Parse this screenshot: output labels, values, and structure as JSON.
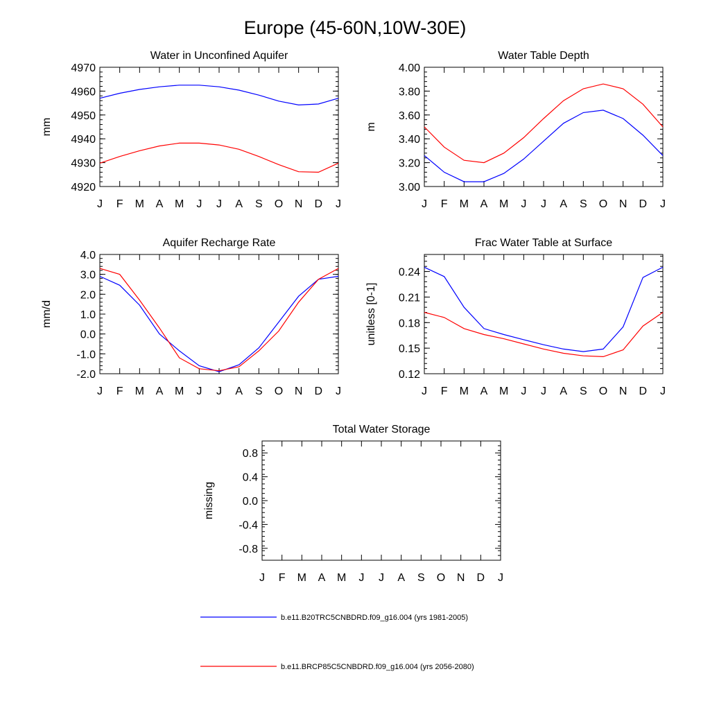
{
  "title": "Europe (45-60N,10W-30E)",
  "months": [
    "J",
    "F",
    "M",
    "A",
    "M",
    "J",
    "J",
    "A",
    "S",
    "O",
    "N",
    "D",
    "J"
  ],
  "colors": {
    "historical": "#0000ff",
    "future": "#ff0000",
    "axis": "#000000"
  },
  "legend": [
    {
      "label": "b.e11.B20TRC5CNBDRD.f09_g16.004 (yrs 1981-2005)",
      "color": "#0000ff"
    },
    {
      "label": "b.e11.BRCP85C5CNBDRD.f09_g16.004 (yrs 2056-2080)",
      "color": "#ff0000"
    }
  ],
  "chart_data": [
    {
      "type": "line",
      "title": "Water in Unconfined Aquifer",
      "ylabel": "mm",
      "ylim": [
        4920,
        4970
      ],
      "yticks": [
        "4920",
        "4930",
        "4940",
        "4950",
        "4960",
        "4970"
      ],
      "series": [
        {
          "name": "b.e11.B20TRC5CNBDRD.f09_g16.004 (yrs 1981-2005)",
          "values": [
            4957.0,
            4959.1,
            4960.7,
            4961.8,
            4962.5,
            4962.5,
            4961.8,
            4960.4,
            4958.3,
            4955.8,
            4954.2,
            4954.6,
            4957.0
          ]
        },
        {
          "name": "b.e11.BRCP85C5CNBDRD.f09_g16.004 (yrs 2056-2080)",
          "values": [
            4929.8,
            4932.6,
            4935.0,
            4937.0,
            4938.2,
            4938.2,
            4937.4,
            4935.6,
            4932.6,
            4929.2,
            4926.2,
            4926.0,
            4929.8
          ]
        }
      ]
    },
    {
      "type": "line",
      "title": "Water Table Depth",
      "ylabel": "m",
      "ylim": [
        3.0,
        4.0
      ],
      "yticks": [
        "3.00",
        "3.20",
        "3.40",
        "3.60",
        "3.80",
        "4.00"
      ],
      "series": [
        {
          "name": "b.e11.B20TRC5CNBDRD.f09_g16.004 (yrs 1981-2005)",
          "values": [
            3.26,
            3.12,
            3.04,
            3.04,
            3.11,
            3.23,
            3.38,
            3.53,
            3.62,
            3.64,
            3.57,
            3.43,
            3.26
          ]
        },
        {
          "name": "b.e11.BRCP85C5CNBDRD.f09_g16.004 (yrs 2056-2080)",
          "values": [
            3.5,
            3.33,
            3.22,
            3.2,
            3.28,
            3.41,
            3.57,
            3.72,
            3.82,
            3.86,
            3.82,
            3.69,
            3.5
          ]
        }
      ]
    },
    {
      "type": "line",
      "title": "Aquifer Recharge Rate",
      "ylabel": "mm/d",
      "ylim": [
        -2.0,
        4.0
      ],
      "yticks": [
        "-2.0",
        "-1.0",
        "0.0",
        "1.0",
        "2.0",
        "3.0",
        "4.0"
      ],
      "series": [
        {
          "name": "b.e11.B20TRC5CNBDRD.f09_g16.004 (yrs 1981-2005)",
          "values": [
            2.9,
            2.45,
            1.45,
            0.0,
            -0.85,
            -1.6,
            -1.9,
            -1.55,
            -0.7,
            0.6,
            1.9,
            2.75,
            2.9
          ]
        },
        {
          "name": "b.e11.BRCP85C5CNBDRD.f09_g16.004 (yrs 2056-2080)",
          "values": [
            3.3,
            3.0,
            1.7,
            0.3,
            -1.2,
            -1.75,
            -1.85,
            -1.65,
            -0.85,
            0.15,
            1.6,
            2.75,
            3.3
          ]
        }
      ]
    },
    {
      "type": "line",
      "title": "Frac Water Table at Surface",
      "ylabel": "unitless [0-1]",
      "ylim": [
        0.12,
        0.26
      ],
      "yticks": [
        "0.12",
        "0.15",
        "0.18",
        "0.21",
        "0.24"
      ],
      "series": [
        {
          "name": "b.e11.B20TRC5CNBDRD.f09_g16.004 (yrs 1981-2005)",
          "values": [
            0.245,
            0.234,
            0.198,
            0.173,
            0.166,
            0.16,
            0.154,
            0.149,
            0.146,
            0.149,
            0.175,
            0.233,
            0.245
          ]
        },
        {
          "name": "b.e11.BRCP85C5CNBDRD.f09_g16.004 (yrs 2056-2080)",
          "values": [
            0.192,
            0.186,
            0.173,
            0.166,
            0.161,
            0.155,
            0.149,
            0.144,
            0.141,
            0.14,
            0.148,
            0.176,
            0.192
          ]
        }
      ]
    },
    {
      "type": "line",
      "title": "Total Water Storage",
      "ylabel": "missing",
      "ylim": [
        -1.0,
        1.0
      ],
      "yticks": [
        "-0.8",
        "-0.4",
        "0.0",
        "0.4",
        "0.8"
      ],
      "series": []
    }
  ]
}
